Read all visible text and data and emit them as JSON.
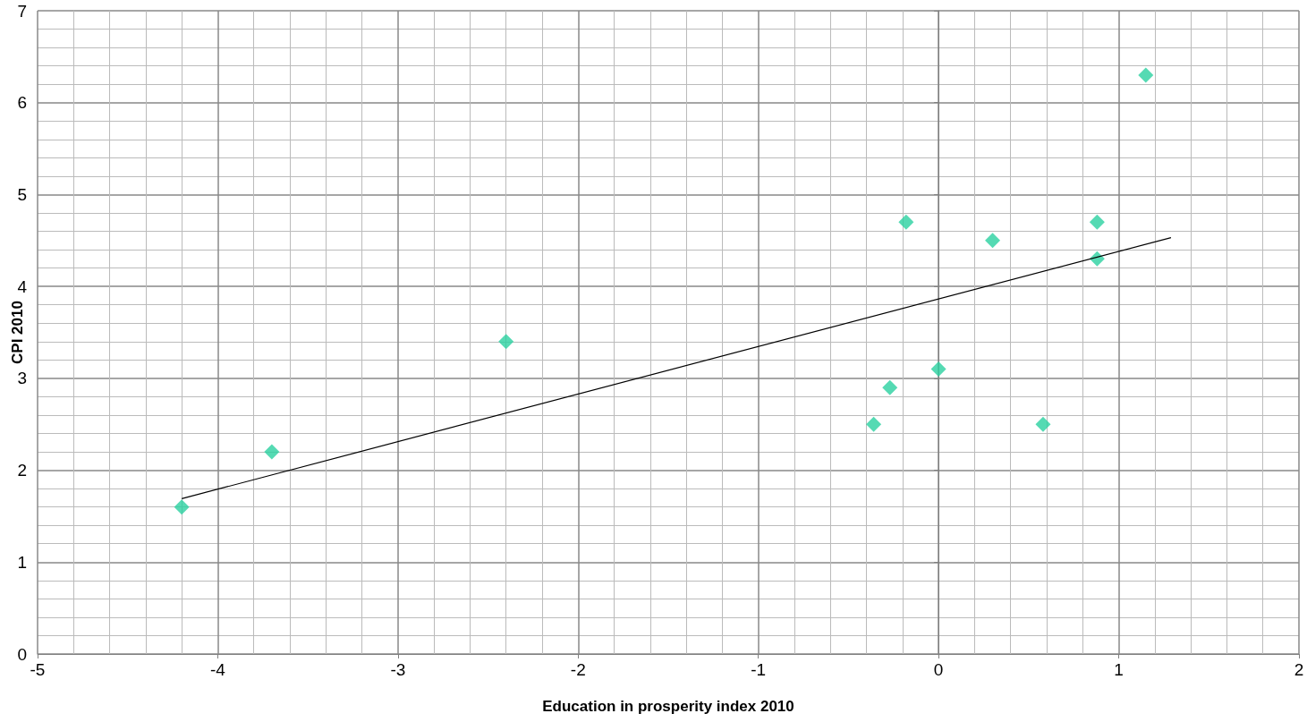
{
  "chart_data": {
    "type": "scatter",
    "xlabel": "Education in prosperity index 2010",
    "ylabel": "CPI 2010",
    "xlim": [
      -5,
      2
    ],
    "xticks": [
      -5,
      -4,
      -3,
      -2,
      -1,
      0,
      1,
      2
    ],
    "ylim": [
      0,
      7
    ],
    "yticks": [
      0,
      1,
      2,
      3,
      4,
      5,
      6,
      7
    ],
    "grid": true,
    "marker": "diamond",
    "series": [
      {
        "color": "#2bd1a0",
        "x": [
          -4.2,
          -3.7,
          -2.4,
          -0.36,
          -0.27,
          -0.18,
          0.0,
          0.3,
          0.58,
          0.88,
          0.88,
          1.15
        ],
        "values": [
          1.6,
          2.2,
          3.4,
          2.5,
          2.9,
          4.7,
          3.1,
          4.5,
          2.5,
          4.7,
          4.3,
          6.3
        ]
      },
      {
        "type": "line",
        "marker": "none",
        "color": "#000000",
        "x": [
          -4.2,
          1.29
        ],
        "values": [
          1.69,
          4.53
        ]
      }
    ]
  }
}
